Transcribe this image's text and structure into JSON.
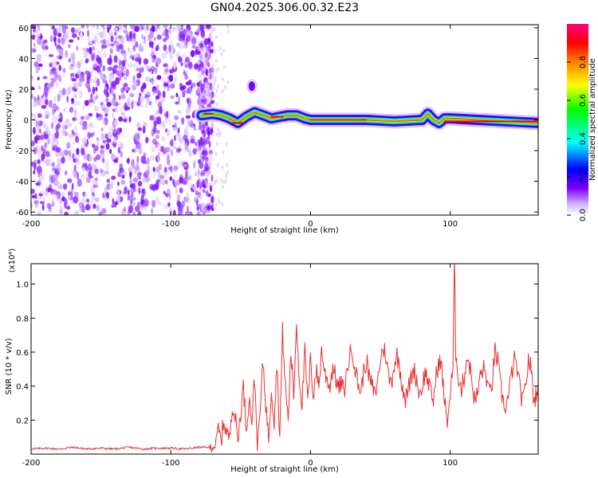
{
  "page": {
    "title": "GN04.2025.306.00.32.E23"
  },
  "chart_data": [
    {
      "type": "heatmap",
      "name": "spectrogram",
      "title": "GN04.2025.306.00.32.E23",
      "xlabel": "Height of straight line (km)",
      "ylabel": "Frequency (Hz)",
      "xlim": [
        -200,
        163
      ],
      "ylim": [
        -62,
        62
      ],
      "xticks": [
        -200,
        -100,
        0,
        100
      ],
      "yticks": [
        60,
        40,
        20,
        0,
        -20,
        -40,
        -60
      ],
      "colorbar": {
        "label": "Normalized spectral amplitude",
        "range": [
          0,
          1
        ],
        "ticks": [
          "0.0",
          "0.2",
          "0.4",
          "0.6",
          "0.8"
        ],
        "colors": [
          "#ffffff",
          "#d0b0ff",
          "#7a00ff",
          "#0000ff",
          "#00ffff",
          "#00ff00",
          "#ffff00",
          "#ff8000",
          "#ff0000",
          "#ff0080"
        ]
      },
      "noise_region_x": [
        -200,
        -70
      ],
      "ridge": {
        "x": [
          -78,
          -70,
          -64,
          -58,
          -52,
          -46,
          -40,
          -34,
          -28,
          -22,
          -16,
          -10,
          -4,
          0,
          20,
          40,
          60,
          80,
          84,
          88,
          92,
          96,
          100,
          120,
          140,
          163
        ],
        "freq": [
          3,
          4,
          3,
          1,
          -2,
          2,
          5,
          3,
          1,
          2,
          3,
          3,
          1,
          0,
          0,
          0,
          -1,
          0,
          4,
          0,
          -2,
          1,
          1,
          0,
          -1,
          -2
        ]
      },
      "blob": {
        "x": -42,
        "freq": 22
      }
    },
    {
      "type": "line",
      "name": "snr",
      "xlabel": "Height of straight line (km)",
      "ylabel": "SNR (10 * v/v)",
      "yscale_label": "(x10⁴)",
      "xlim": [
        -200,
        163
      ],
      "ylim": [
        0,
        1.12
      ],
      "xticks": [
        -200,
        -100,
        0,
        100
      ],
      "yticks": [
        1.0,
        0.8,
        0.6,
        0.4,
        0.2
      ],
      "ytick_labels": [
        "1.0",
        "0.8",
        "0.6",
        "0.4",
        "0.2"
      ],
      "color": "#e83030",
      "series": [
        {
          "name": "SNR",
          "x": [
            -200,
            -190,
            -180,
            -170,
            -160,
            -150,
            -140,
            -130,
            -120,
            -110,
            -100,
            -90,
            -80,
            -72,
            -68,
            -66,
            -64,
            -62,
            -60,
            -58,
            -56,
            -54,
            -52,
            -50,
            -48,
            -46,
            -44,
            -42,
            -40,
            -38,
            -36,
            -34,
            -32,
            -30,
            -28,
            -26,
            -24,
            -22,
            -20,
            -18,
            -16,
            -14,
            -12,
            -10,
            -8,
            -6,
            -4,
            -2,
            0,
            2,
            4,
            6,
            8,
            10,
            12,
            14,
            16,
            18,
            20,
            22,
            24,
            26,
            28,
            30,
            32,
            34,
            36,
            38,
            40,
            42,
            44,
            46,
            48,
            50,
            52,
            54,
            56,
            58,
            60,
            62,
            64,
            66,
            68,
            70,
            72,
            74,
            76,
            78,
            80,
            82,
            84,
            86,
            88,
            90,
            92,
            94,
            96,
            98,
            100,
            102,
            103,
            104,
            106,
            108,
            110,
            112,
            114,
            116,
            118,
            120,
            122,
            124,
            126,
            128,
            130,
            132,
            134,
            136,
            138,
            140,
            142,
            144,
            146,
            148,
            150,
            152,
            154,
            156,
            158,
            160,
            163
          ],
          "y": [
            0.03,
            0.035,
            0.03,
            0.04,
            0.03,
            0.035,
            0.03,
            0.04,
            0.03,
            0.035,
            0.035,
            0.03,
            0.04,
            0.04,
            0.05,
            0.15,
            0.08,
            0.2,
            0.12,
            0.1,
            0.3,
            0.22,
            0.08,
            0.25,
            0.4,
            0.15,
            0.33,
            0.2,
            0.45,
            0.05,
            0.25,
            0.55,
            0.3,
            0.08,
            0.4,
            0.2,
            0.55,
            0.1,
            0.72,
            0.4,
            0.2,
            0.6,
            0.35,
            0.78,
            0.45,
            0.3,
            0.6,
            0.3,
            0.55,
            0.35,
            0.5,
            0.4,
            0.62,
            0.48,
            0.44,
            0.4,
            0.52,
            0.45,
            0.38,
            0.42,
            0.36,
            0.48,
            0.58,
            0.62,
            0.5,
            0.42,
            0.36,
            0.48,
            0.55,
            0.45,
            0.4,
            0.35,
            0.42,
            0.55,
            0.63,
            0.58,
            0.45,
            0.42,
            0.53,
            0.58,
            0.5,
            0.4,
            0.32,
            0.38,
            0.45,
            0.5,
            0.44,
            0.35,
            0.4,
            0.48,
            0.44,
            0.36,
            0.32,
            0.46,
            0.55,
            0.5,
            0.3,
            0.2,
            0.35,
            0.5,
            1.12,
            0.6,
            0.45,
            0.38,
            0.45,
            0.58,
            0.52,
            0.4,
            0.3,
            0.38,
            0.48,
            0.5,
            0.45,
            0.35,
            0.42,
            0.6,
            0.55,
            0.4,
            0.3,
            0.28,
            0.35,
            0.48,
            0.55,
            0.5,
            0.38,
            0.3,
            0.4,
            0.56,
            0.5,
            0.3,
            0.42
          ]
        }
      ]
    }
  ]
}
